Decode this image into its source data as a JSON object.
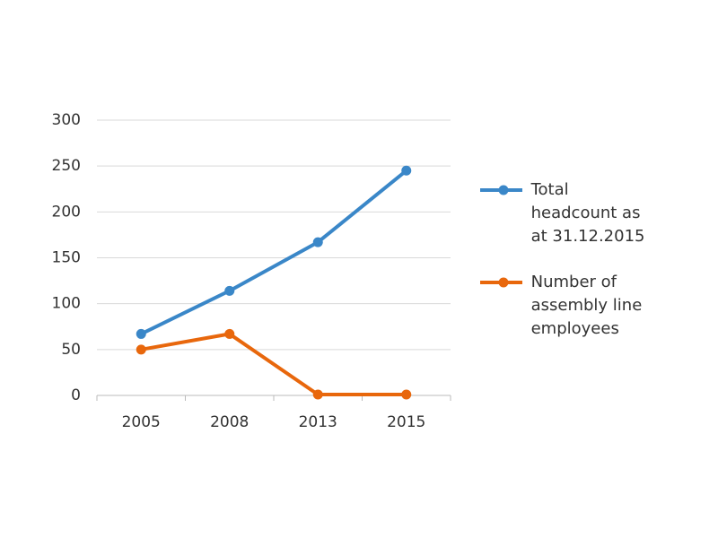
{
  "chart_data": {
    "type": "line",
    "categories": [
      "2005",
      "2008",
      "2013",
      "2015"
    ],
    "series": [
      {
        "name": "Total headcount as at 31.12.2015",
        "color": "#3a87c8",
        "values": [
          67,
          114,
          167,
          245
        ]
      },
      {
        "name": "Number of assembly line employees",
        "color": "#e8670c",
        "values": [
          50,
          67,
          1,
          1
        ]
      }
    ],
    "ylim": [
      0,
      300
    ],
    "yticks": [
      0,
      50,
      100,
      150,
      200,
      250,
      300
    ],
    "grid": true,
    "legend": "right"
  }
}
